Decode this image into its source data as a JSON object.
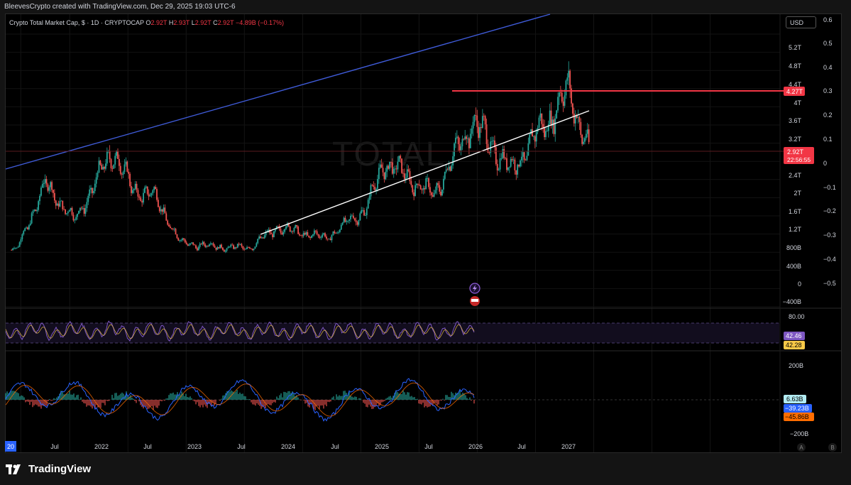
{
  "header": {
    "attribution": "BleevesCrypto created with TradingView.com, Dec 29, 2025 19:03 UTC-6"
  },
  "symbol": {
    "name": "Crypto Total Market Cap, $ · 1D · CRYPTOCAP",
    "watermark": "TOTAL"
  },
  "ohlc": {
    "o_label": "O",
    "o_value": "2.92T",
    "h_label": "H",
    "h_value": "2.93T",
    "l_label": "L",
    "l_value": "2.92T",
    "c_label": "C",
    "c_value": "2.92T",
    "change": "−4.89B (−0.17%)"
  },
  "currency_button": "USD",
  "footer": {
    "brand": "TradingView"
  },
  "colors": {
    "up": "#26a69a",
    "down": "#ef5350",
    "blue_line": "#3f5bd8",
    "white_line": "#ffffff",
    "red_level": "#f23645",
    "rsi": "#7e57c2",
    "rsi_ma": "#f7c948"
  },
  "chart_data": {
    "type": "candlestick",
    "x_tick_labels": [
      "20",
      "Jul",
      "2022",
      "Jul",
      "2023",
      "Jul",
      "2024",
      "Jul",
      "2025",
      "Jul",
      "2026",
      "Jul",
      "2027"
    ],
    "price_axis_left_labels": [
      "5.2T",
      "4.8T",
      "4.4T",
      "4T",
      "3.6T",
      "3.2T",
      "2.4T",
      "2T",
      "1.6T",
      "1.2T",
      "800B",
      "400B",
      "0",
      "−400B"
    ],
    "price_axis_right_labels": [
      "0.6",
      "0.5",
      "0.4",
      "0.3",
      "0.2",
      "0.1",
      "0",
      "−0.1",
      "−0.2",
      "−0.3",
      "−0.4",
      "−0.5"
    ],
    "price_approx_trillions": [
      [
        "2021-01",
        0.75
      ],
      [
        "2021-04",
        2.2
      ],
      [
        "2021-07",
        1.4
      ],
      [
        "2021-11",
        2.95
      ],
      [
        "2022-01",
        2.05
      ],
      [
        "2022-03",
        2.0
      ],
      [
        "2022-06",
        0.9
      ],
      [
        "2022-11",
        0.8
      ],
      [
        "2023-01",
        0.8
      ],
      [
        "2023-04",
        1.25
      ],
      [
        "2023-08",
        1.05
      ],
      [
        "2023-09",
        1.02
      ],
      [
        "2024-01",
        1.65
      ],
      [
        "2024-03",
        2.7
      ],
      [
        "2024-08",
        1.95
      ],
      [
        "2024-12",
        3.6
      ],
      [
        "2025-04",
        2.5
      ],
      [
        "2025-07",
        3.4
      ],
      [
        "2025-10",
        4.27
      ],
      [
        "2025-12",
        2.92
      ]
    ],
    "levels": [
      {
        "label": "4.27T",
        "value": 4.27
      }
    ],
    "current": {
      "price": "2.92T",
      "countdown": "22:56:55"
    },
    "trendlines": [
      "blue upper channel line",
      "white rising support line"
    ],
    "rsi": {
      "level": "80.00",
      "value1": "42.46",
      "value2": "42.28"
    },
    "macd": {
      "axis_top": "200B",
      "axis_bottom": "−200B",
      "histogram": "6.63B",
      "macd": "−39.23B",
      "signal": "−45.86B"
    },
    "bottom_right_labels": [
      "A",
      "B"
    ]
  }
}
